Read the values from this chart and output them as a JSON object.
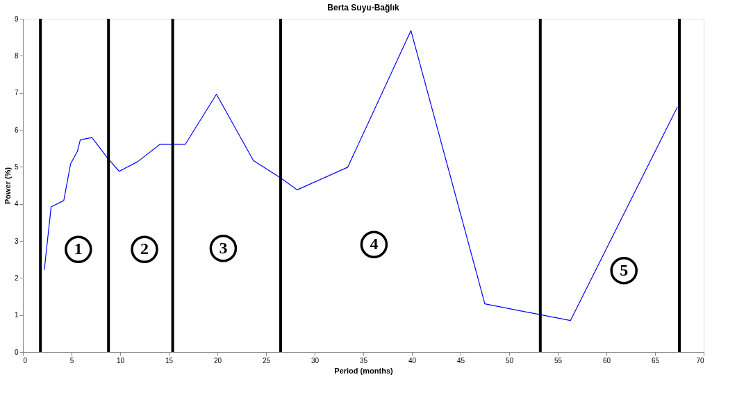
{
  "chart_data": {
    "type": "line",
    "title": "Berta Suyu-Bağlık",
    "xlabel": "Period (months)",
    "ylabel": "Power (%)",
    "x": [
      2.2,
      2.9,
      4.2,
      4.9,
      5.6,
      5.9,
      7.1,
      8.7,
      9.9,
      11.8,
      14.1,
      16.7,
      19.9,
      23.7,
      26.5,
      28.2,
      33.4,
      39.9,
      47.5,
      56.3,
      67.3
    ],
    "series": [
      {
        "color": "#0000ff",
        "values": [
          2.22,
          3.92,
          4.09,
          5.08,
          5.42,
          5.73,
          5.79,
          5.24,
          4.88,
          5.14,
          5.61,
          5.61,
          6.96,
          5.17,
          4.7,
          4.38,
          4.99,
          8.68,
          1.3,
          0.85,
          6.62
        ]
      }
    ],
    "xlim": [
      0,
      70
    ],
    "ylim": [
      0,
      9
    ],
    "xticks": [
      0,
      5,
      10,
      15,
      20,
      25,
      30,
      35,
      40,
      45,
      50,
      55,
      60,
      65,
      70
    ],
    "yticks": [
      0,
      1,
      2,
      3,
      4,
      5,
      6,
      7,
      8,
      9
    ],
    "grid": false,
    "marker": "none",
    "line_style": "solid",
    "ref_lines": [
      {
        "axis": "x",
        "value": 1.8,
        "color": "#000000"
      },
      {
        "axis": "x",
        "value": 8.8,
        "color": "#000000"
      },
      {
        "axis": "x",
        "value": 15.4,
        "color": "#000000"
      },
      {
        "axis": "x",
        "value": 26.5,
        "color": "#000000"
      },
      {
        "axis": "x",
        "value": 53.2,
        "color": "#000000"
      },
      {
        "axis": "x",
        "value": 67.5,
        "color": "#000000"
      }
    ],
    "annotations": [
      {
        "text": "1",
        "x": 5.7,
        "y": 2.77
      },
      {
        "text": "2",
        "x": 12.5,
        "y": 2.77
      },
      {
        "text": "3",
        "x": 20.6,
        "y": 2.8
      },
      {
        "text": "4",
        "x": 36.1,
        "y": 2.9
      },
      {
        "text": "5",
        "x": 61.8,
        "y": 2.2
      }
    ]
  }
}
